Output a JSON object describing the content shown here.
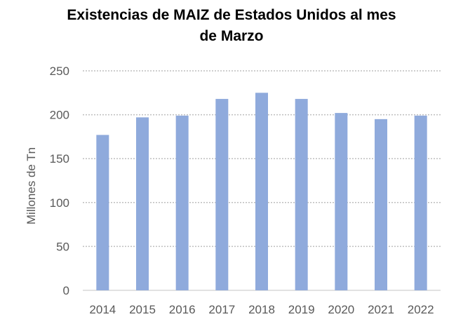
{
  "chart_data": {
    "type": "bar",
    "title_lines": [
      "Existencias de MAIZ de Estados Unidos al mes",
      "de Marzo"
    ],
    "xlabel": "",
    "ylabel": "Millones de Tn",
    "categories": [
      "2014",
      "2015",
      "2016",
      "2017",
      "2018",
      "2019",
      "2020",
      "2021",
      "2022"
    ],
    "values": [
      177,
      197,
      199,
      218,
      225,
      218,
      202,
      195,
      199
    ],
    "ylim": [
      0,
      250
    ],
    "yticks": [
      "0",
      "50",
      "100",
      "150",
      "200",
      "250"
    ],
    "grid": true,
    "colors": {
      "bar": "#8faadc",
      "grid": "#bfbfbf",
      "axis": "#d9d9d9",
      "text": "#595959",
      "title": "#000000"
    }
  }
}
